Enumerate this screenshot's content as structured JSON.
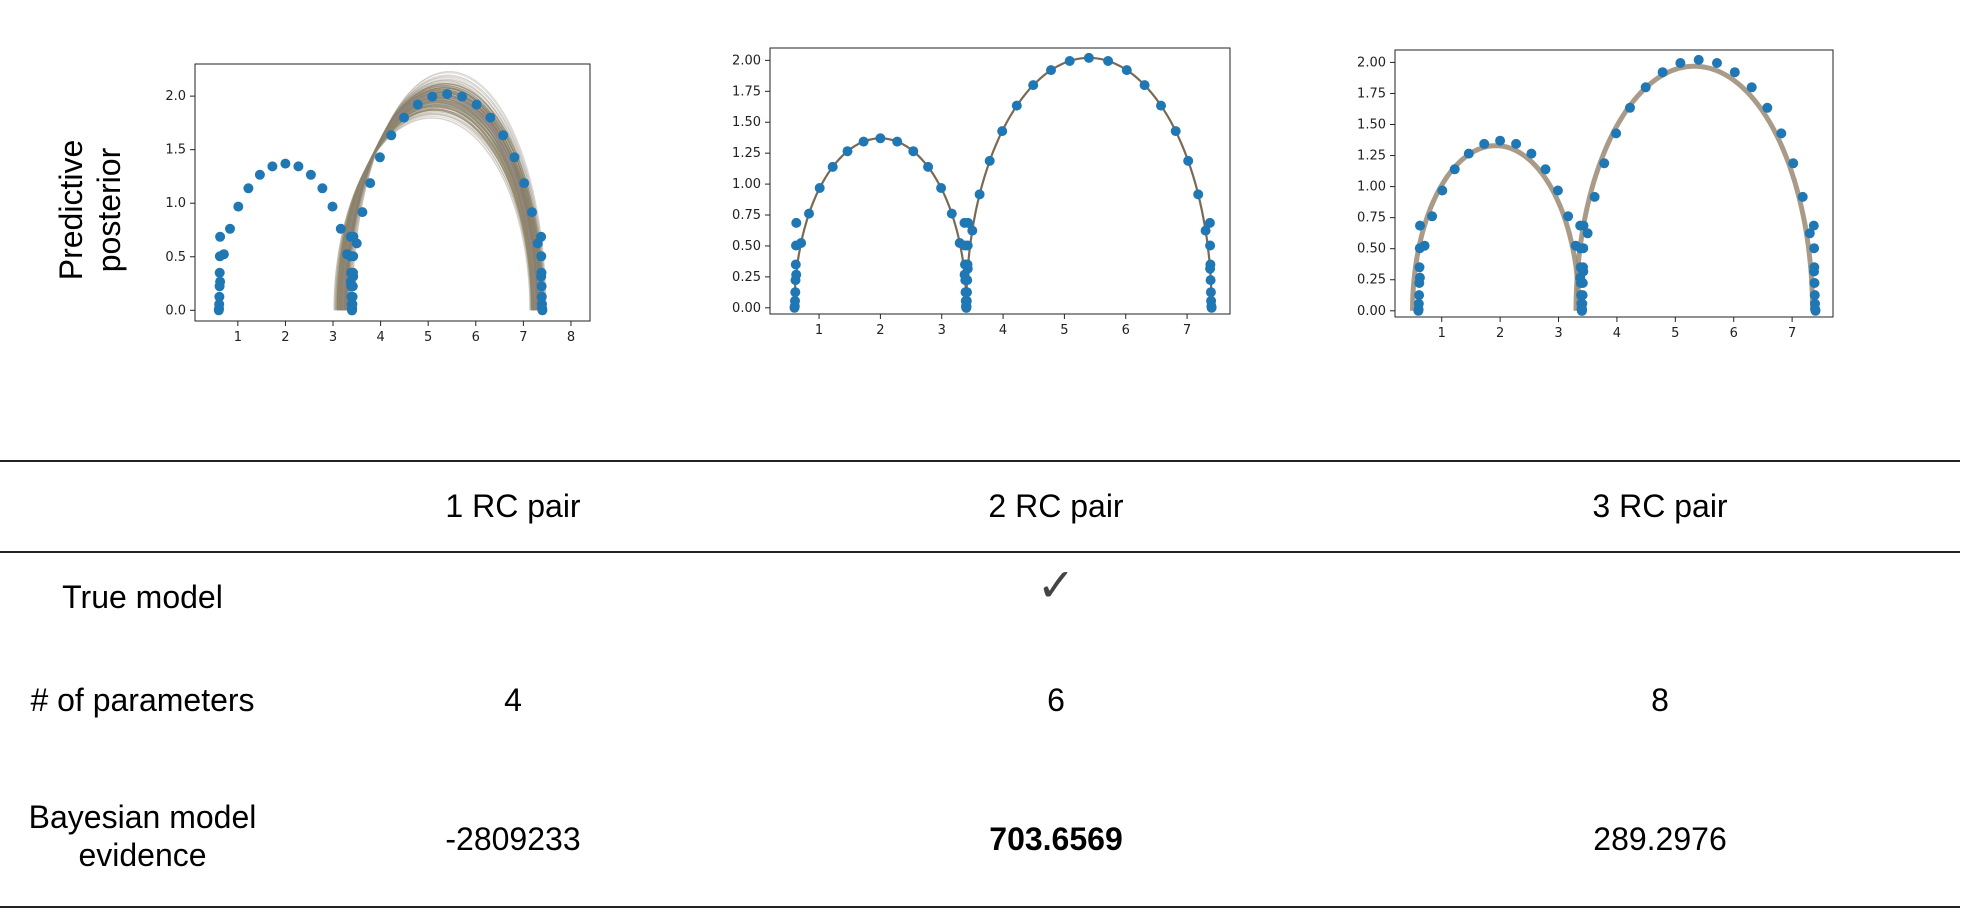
{
  "row_labels": {
    "predictive_posterior": "Predictive\nposterior",
    "true_model": "True model",
    "num_parameters": "# of parameters",
    "model_evidence": "Bayesian model\nevidence"
  },
  "columns": [
    {
      "header": "1 RC pair",
      "true_model": "",
      "num_parameters": "4",
      "evidence": "-2809233",
      "evidence_bold": false
    },
    {
      "header": "2 RC pair",
      "true_model": "✓",
      "num_parameters": "6",
      "evidence": "703.6569",
      "evidence_bold": true
    },
    {
      "header": "3 RC pair",
      "true_model": "",
      "num_parameters": "8",
      "evidence": "289.2976",
      "evidence_bold": false
    }
  ],
  "colors": {
    "points": "#1f77b4",
    "fit": "#7a6a55",
    "fit_band": "#9a8a72",
    "grid": "#222222"
  },
  "chart_data": [
    {
      "type": "scatter",
      "xlim": [
        0.1,
        8.4
      ],
      "ylim": [
        -0.1,
        2.3
      ],
      "xticks": [
        1,
        2,
        3,
        4,
        5,
        6,
        7,
        8
      ],
      "yticks": [
        0.0,
        0.5,
        1.0,
        1.5,
        2.0
      ],
      "ytick_labels": [
        "0.0",
        "0.5",
        "1.0",
        "1.5",
        "2.0"
      ],
      "observed": {
        "arcs": [
          [
            0.6,
            3.4,
            1.37
          ],
          [
            3.4,
            7.4,
            2.02
          ]
        ]
      },
      "posterior_fit": {
        "arcs": [
          [
            3.2,
            7.3,
            2.0
          ]
        ],
        "band_spread": 0.35
      }
    },
    {
      "type": "scatter",
      "xlim": [
        0.2,
        7.7
      ],
      "ylim": [
        -0.05,
        2.1
      ],
      "xticks": [
        1,
        2,
        3,
        4,
        5,
        6,
        7
      ],
      "yticks": [
        0.0,
        0.25,
        0.5,
        0.75,
        1.0,
        1.25,
        1.5,
        1.75,
        2.0
      ],
      "ytick_labels": [
        "0.00",
        "0.25",
        "0.50",
        "0.75",
        "1.00",
        "1.25",
        "1.50",
        "1.75",
        "2.00"
      ],
      "observed": {
        "arcs": [
          [
            0.6,
            3.4,
            1.37
          ],
          [
            3.4,
            7.4,
            2.02
          ]
        ]
      },
      "posterior_fit": {
        "arcs": [
          [
            0.6,
            3.4,
            1.37
          ],
          [
            3.4,
            7.4,
            2.02
          ]
        ],
        "band_spread": 0.0
      }
    },
    {
      "type": "scatter",
      "xlim": [
        0.2,
        7.7
      ],
      "ylim": [
        -0.05,
        2.1
      ],
      "xticks": [
        1,
        2,
        3,
        4,
        5,
        6,
        7
      ],
      "yticks": [
        0.0,
        0.25,
        0.5,
        0.75,
        1.0,
        1.25,
        1.5,
        1.75,
        2.0
      ],
      "ytick_labels": [
        "0.00",
        "0.25",
        "0.50",
        "0.75",
        "1.00",
        "1.25",
        "1.50",
        "1.75",
        "2.00"
      ],
      "observed": {
        "arcs": [
          [
            0.6,
            3.4,
            1.37
          ],
          [
            3.4,
            7.4,
            2.02
          ]
        ]
      },
      "posterior_fit": {
        "arcs": [
          [
            0.5,
            3.35,
            1.33
          ],
          [
            3.3,
            7.35,
            1.97
          ]
        ],
        "band_spread": 0.0
      }
    }
  ]
}
